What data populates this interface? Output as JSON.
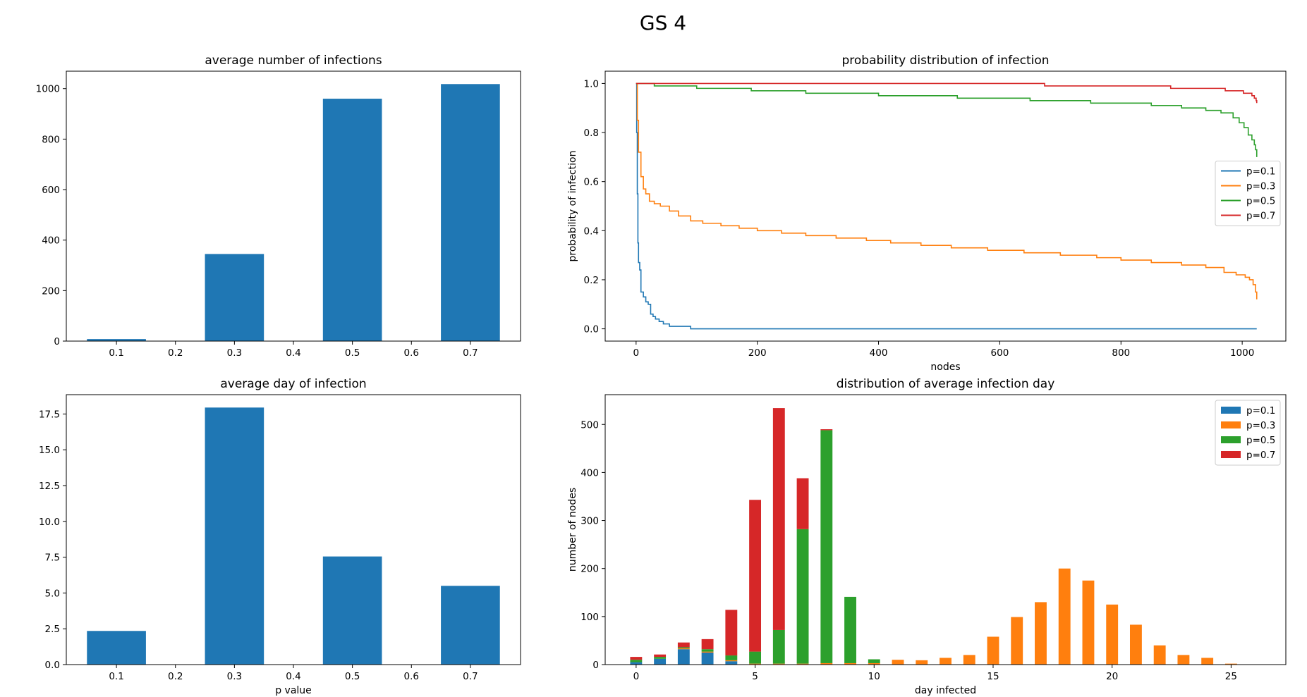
{
  "figure": {
    "suptitle": "GS 4"
  },
  "colors": {
    "c0": "#1f77b4",
    "c1": "#ff7f0e",
    "c2": "#2ca02c",
    "c3": "#d62728"
  },
  "chart_data": [
    {
      "id": "avg_infections",
      "type": "bar",
      "title": "average number of infections",
      "xlabel": "",
      "ylabel": "",
      "x": [
        0.1,
        0.3,
        0.5,
        0.7
      ],
      "values": [
        8,
        345,
        960,
        1018
      ],
      "xlim": [
        0.015,
        0.785
      ],
      "ylim": [
        0,
        1069
      ],
      "xticks": [
        0.1,
        0.2,
        0.3,
        0.4,
        0.5,
        0.6,
        0.7
      ],
      "xticklabels": [
        "0.1",
        "0.2",
        "0.3",
        "0.4",
        "0.5",
        "0.6",
        "0.7"
      ],
      "yticks": [
        0,
        200,
        400,
        600,
        800,
        1000
      ],
      "yticklabels": [
        "0",
        "200",
        "400",
        "600",
        "800",
        "1000"
      ],
      "bar_width": 0.1
    },
    {
      "id": "prob_distribution",
      "type": "line",
      "title": "probability distribution of infection",
      "xlabel": "nodes",
      "ylabel": "probability of infection",
      "xlim": [
        -51,
        1072
      ],
      "ylim": [
        -0.05,
        1.05
      ],
      "xticks": [
        0,
        200,
        400,
        600,
        800,
        1000
      ],
      "xticklabels": [
        "0",
        "200",
        "400",
        "600",
        "800",
        "1000"
      ],
      "yticks": [
        0,
        0.2,
        0.4,
        0.6,
        0.8,
        1.0
      ],
      "yticklabels": [
        "0.0",
        "0.2",
        "0.4",
        "0.6",
        "0.8",
        "1.0"
      ],
      "legend": {
        "placement": "center-right"
      },
      "series": [
        {
          "name": "p=0.1",
          "color": "#1f77b4",
          "points": [
            [
              0,
              1.0
            ],
            [
              1,
              0.8
            ],
            [
              2,
              0.55
            ],
            [
              3,
              0.35
            ],
            [
              4,
              0.27
            ],
            [
              6,
              0.24
            ],
            [
              8,
              0.15
            ],
            [
              12,
              0.13
            ],
            [
              16,
              0.11
            ],
            [
              20,
              0.1
            ],
            [
              24,
              0.06
            ],
            [
              28,
              0.05
            ],
            [
              32,
              0.04
            ],
            [
              38,
              0.03
            ],
            [
              45,
              0.02
            ],
            [
              55,
              0.01
            ],
            [
              88,
              0.01
            ],
            [
              90,
              0.0
            ],
            [
              1024,
              0.0
            ]
          ]
        },
        {
          "name": "p=0.3",
          "color": "#ff7f0e",
          "points": [
            [
              0,
              1.0
            ],
            [
              2,
              0.85
            ],
            [
              4,
              0.72
            ],
            [
              8,
              0.62
            ],
            [
              12,
              0.57
            ],
            [
              16,
              0.55
            ],
            [
              22,
              0.52
            ],
            [
              30,
              0.51
            ],
            [
              40,
              0.5
            ],
            [
              55,
              0.48
            ],
            [
              70,
              0.46
            ],
            [
              90,
              0.44
            ],
            [
              110,
              0.43
            ],
            [
              140,
              0.42
            ],
            [
              170,
              0.41
            ],
            [
              200,
              0.4
            ],
            [
              240,
              0.39
            ],
            [
              280,
              0.38
            ],
            [
              330,
              0.37
            ],
            [
              380,
              0.36
            ],
            [
              420,
              0.35
            ],
            [
              470,
              0.34
            ],
            [
              520,
              0.33
            ],
            [
              580,
              0.32
            ],
            [
              640,
              0.31
            ],
            [
              700,
              0.3
            ],
            [
              760,
              0.29
            ],
            [
              800,
              0.28
            ],
            [
              850,
              0.27
            ],
            [
              900,
              0.26
            ],
            [
              940,
              0.25
            ],
            [
              970,
              0.23
            ],
            [
              990,
              0.22
            ],
            [
              1005,
              0.21
            ],
            [
              1012,
              0.2
            ],
            [
              1018,
              0.18
            ],
            [
              1022,
              0.15
            ],
            [
              1024,
              0.12
            ]
          ]
        },
        {
          "name": "p=0.5",
          "color": "#2ca02c",
          "points": [
            [
              0,
              1.0
            ],
            [
              30,
              0.99
            ],
            [
              100,
              0.98
            ],
            [
              190,
              0.97
            ],
            [
              280,
              0.96
            ],
            [
              400,
              0.95
            ],
            [
              530,
              0.94
            ],
            [
              650,
              0.93
            ],
            [
              750,
              0.92
            ],
            [
              850,
              0.91
            ],
            [
              900,
              0.9
            ],
            [
              940,
              0.89
            ],
            [
              965,
              0.88
            ],
            [
              985,
              0.86
            ],
            [
              995,
              0.84
            ],
            [
              1003,
              0.82
            ],
            [
              1010,
              0.79
            ],
            [
              1016,
              0.77
            ],
            [
              1020,
              0.75
            ],
            [
              1022,
              0.73
            ],
            [
              1024,
              0.7
            ]
          ]
        },
        {
          "name": "p=0.7",
          "color": "#d62728",
          "points": [
            [
              0,
              1.0
            ],
            [
              672,
              1.0
            ],
            [
              674,
              0.99
            ],
            [
              880,
              0.99
            ],
            [
              882,
              0.98
            ],
            [
              970,
              0.98
            ],
            [
              972,
              0.97
            ],
            [
              1000,
              0.97
            ],
            [
              1002,
              0.96
            ],
            [
              1012,
              0.96
            ],
            [
              1016,
              0.95
            ],
            [
              1020,
              0.94
            ],
            [
              1023,
              0.93
            ],
            [
              1024,
              0.92
            ]
          ]
        }
      ]
    },
    {
      "id": "avg_day",
      "type": "bar",
      "title": "average day of infection",
      "xlabel": "p value",
      "ylabel": "",
      "x": [
        0.1,
        0.3,
        0.5,
        0.7
      ],
      "values": [
        2.35,
        17.95,
        7.55,
        5.5
      ],
      "xlim": [
        0.015,
        0.785
      ],
      "ylim": [
        0,
        18.85
      ],
      "xticks": [
        0.1,
        0.2,
        0.3,
        0.4,
        0.5,
        0.6,
        0.7
      ],
      "xticklabels": [
        "0.1",
        "0.2",
        "0.3",
        "0.4",
        "0.5",
        "0.6",
        "0.7"
      ],
      "yticks": [
        0,
        2.5,
        5,
        7.5,
        10,
        12.5,
        15,
        17.5
      ],
      "yticklabels": [
        "0.0",
        "2.5",
        "5.0",
        "7.5",
        "10.0",
        "12.5",
        "15.0",
        "17.5"
      ],
      "bar_width": 0.1
    },
    {
      "id": "day_distribution",
      "type": "bar",
      "stacked": true,
      "title": "distribution of average infection day",
      "xlabel": "day infected",
      "ylabel": "number of nodes",
      "xlim": [
        -1.3,
        27.3
      ],
      "ylim": [
        0,
        562
      ],
      "xticks": [
        0,
        5,
        10,
        15,
        20,
        25
      ],
      "xticklabels": [
        "0",
        "5",
        "10",
        "15",
        "20",
        "25"
      ],
      "yticks": [
        0,
        100,
        200,
        300,
        400,
        500
      ],
      "yticklabels": [
        "0",
        "100",
        "200",
        "300",
        "400",
        "500"
      ],
      "bar_width": 0.5,
      "legend": {
        "placement": "top-right"
      },
      "categories": [
        0,
        1,
        2,
        3,
        4,
        5,
        6,
        7,
        8,
        9,
        10,
        11,
        12,
        13,
        14,
        15,
        16,
        17,
        18,
        19,
        20,
        21,
        22,
        23,
        24,
        25
      ],
      "series": [
        {
          "name": "p=0.1",
          "color": "#1f77b4",
          "values": [
            5,
            12,
            32,
            25,
            7,
            0,
            0,
            0,
            0,
            0,
            0,
            0,
            0,
            0,
            0,
            0,
            0,
            0,
            0,
            0,
            0,
            0,
            0,
            0,
            0,
            0
          ]
        },
        {
          "name": "p=0.3",
          "color": "#ff7f0e",
          "values": [
            0,
            0,
            2,
            2,
            2,
            2,
            2,
            2,
            3,
            3,
            3,
            10,
            9,
            14,
            20,
            58,
            99,
            130,
            200,
            175,
            125,
            83,
            40,
            20,
            14,
            2
          ]
        },
        {
          "name": "p=0.5",
          "color": "#2ca02c",
          "values": [
            5,
            4,
            2,
            5,
            10,
            25,
            70,
            280,
            485,
            138,
            8,
            0,
            0,
            0,
            0,
            0,
            0,
            0,
            0,
            0,
            0,
            0,
            0,
            0,
            0,
            0
          ]
        },
        {
          "name": "p=0.7",
          "color": "#d62728",
          "values": [
            6,
            5,
            10,
            21,
            95,
            316,
            462,
            106,
            2,
            0,
            0,
            0,
            0,
            0,
            0,
            0,
            0,
            0,
            0,
            0,
            0,
            0,
            0,
            0,
            0,
            0
          ]
        }
      ]
    }
  ]
}
